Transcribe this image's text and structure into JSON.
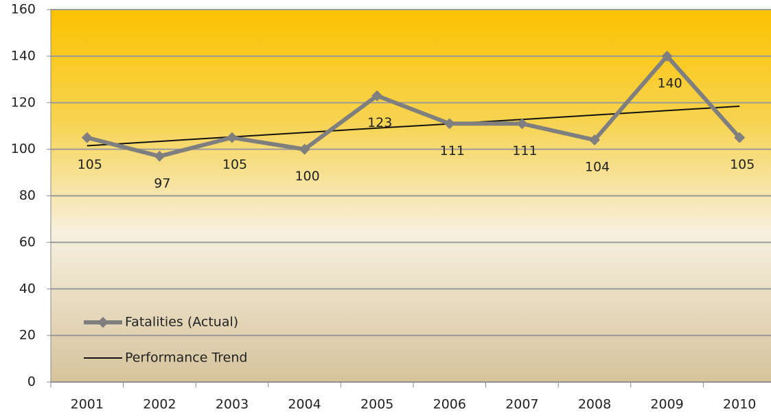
{
  "chart_data": {
    "type": "line",
    "categories": [
      "2001",
      "2002",
      "2003",
      "2004",
      "2005",
      "2006",
      "2007",
      "2008",
      "2009",
      "2010"
    ],
    "series": [
      {
        "name": "Fatalities (Actual)",
        "color": "#7f7f7f",
        "marker": "diamond",
        "values": [
          105,
          97,
          105,
          100,
          123,
          111,
          111,
          104,
          140,
          105
        ]
      },
      {
        "name": "Performance Trend",
        "color": "#111111",
        "values": [
          101.5,
          103.4,
          105.3,
          107.2,
          109.1,
          110.9,
          112.8,
          114.7,
          116.6,
          118.5
        ]
      }
    ],
    "ylim": [
      0,
      160
    ],
    "yticks": [
      0,
      20,
      40,
      60,
      80,
      100,
      120,
      140,
      160
    ],
    "grid": true,
    "legend": "lower left",
    "data_labels_series": 0
  }
}
